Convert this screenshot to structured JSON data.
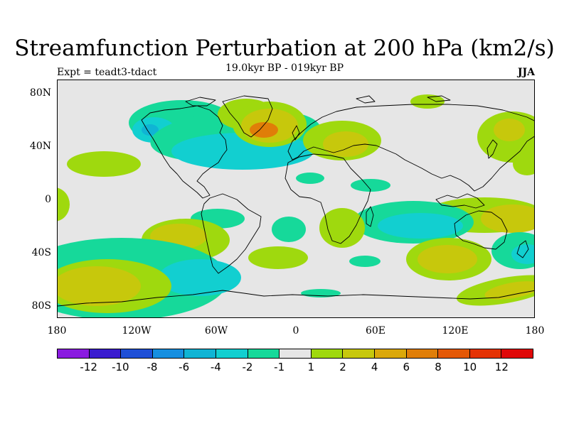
{
  "title": "Streamfunction Perturbation at 200 hPa (km2/s)",
  "subtitle": "19.0kyr BP - 019kyr BP",
  "expt_label": "Expt = teadt3-tdact",
  "season": "JJA",
  "lat_labels": [
    "80N",
    "40N",
    "0",
    "40S",
    "80S"
  ],
  "lon_labels": [
    "180",
    "120W",
    "60W",
    "0",
    "60E",
    "120E",
    "180"
  ],
  "colorbar": {
    "colors": [
      "#8a1be0",
      "#3a1ccf",
      "#1e4fd6",
      "#168fe0",
      "#10b4d4",
      "#12cfd0",
      "#16d99a",
      "#e6e6e6",
      "#9fd90e",
      "#c7c80c",
      "#dba80a",
      "#e07e08",
      "#e45806",
      "#e43204",
      "#e00808"
    ],
    "labels": [
      "-12",
      "-10",
      "-8",
      "-6",
      "-4",
      "-2",
      "-1",
      "1",
      "2",
      "4",
      "6",
      "8",
      "10",
      "12"
    ]
  },
  "fill_colors": {
    "neg1": "#16d99a",
    "neg2": "#12cfd0",
    "neg4": "#10b4d4",
    "pos1": "#9fd90e",
    "pos2": "#c7c80c",
    "pos4": "#dba80a",
    "pos6": "#e07e08"
  }
}
